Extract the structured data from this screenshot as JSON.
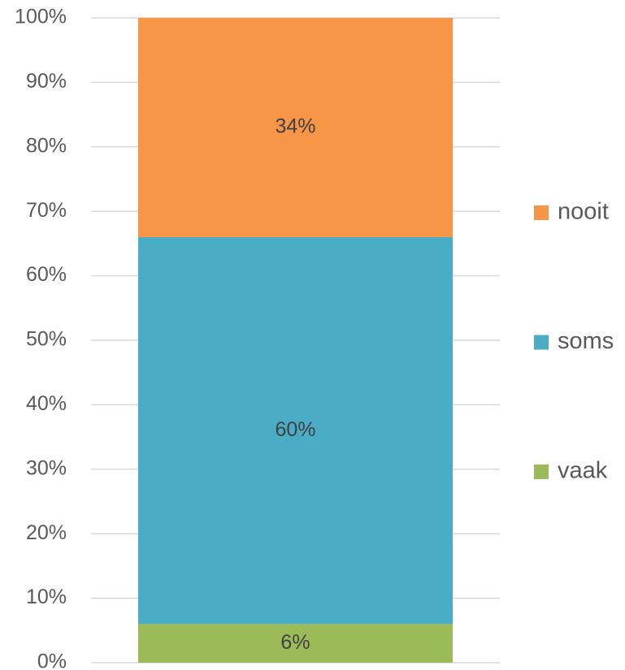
{
  "chart_data": {
    "type": "stacked_bar",
    "categories": [
      null
    ],
    "series": [
      {
        "name": "vaak",
        "color": "#9bbb59",
        "values": [
          6
        ],
        "value_labels": [
          "6%"
        ]
      },
      {
        "name": "soms",
        "color": "#4bacc6",
        "values": [
          60
        ],
        "value_labels": [
          "60%"
        ]
      },
      {
        "name": "nooit",
        "color": "#f79646",
        "values": [
          34
        ],
        "value_labels": [
          "34%"
        ]
      }
    ],
    "ylim": [
      0,
      100
    ],
    "yticks": [
      {
        "value": 0,
        "label": "0%"
      },
      {
        "value": 10,
        "label": "10%"
      },
      {
        "value": 20,
        "label": "20%"
      },
      {
        "value": 30,
        "label": "30%"
      },
      {
        "value": 40,
        "label": "40%"
      },
      {
        "value": 50,
        "label": "50%"
      },
      {
        "value": 60,
        "label": "60%"
      },
      {
        "value": 70,
        "label": "70%"
      },
      {
        "value": 80,
        "label": "80%"
      },
      {
        "value": 90,
        "label": "90%"
      },
      {
        "value": 100,
        "label": "100%"
      }
    ],
    "grid": true,
    "legend": "right"
  }
}
